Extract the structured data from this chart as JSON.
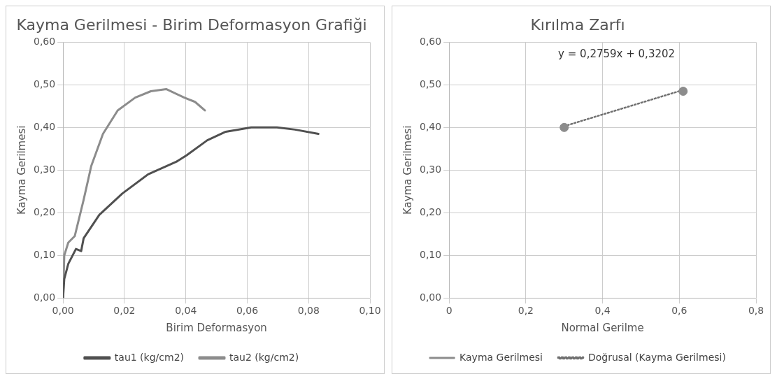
{
  "chart_data": [
    {
      "type": "line",
      "title": "Kayma Gerilmesi - Birim Deformasyon Grafiği",
      "xlabel": "Birim Deformasyon",
      "ylabel": "Kayma Gerilmesi",
      "xlim": [
        0,
        0.1
      ],
      "xticks": [
        {
          "value": 0,
          "label": "0,00"
        },
        {
          "value": 0.02,
          "label": "0,02"
        },
        {
          "value": 0.04,
          "label": "0,04"
        },
        {
          "value": 0.06,
          "label": "0,06"
        },
        {
          "value": 0.08,
          "label": "0,08"
        },
        {
          "value": 0.1,
          "label": "0,10"
        }
      ],
      "ylim": [
        0,
        0.6
      ],
      "yticks": [
        {
          "value": 0,
          "label": "0,00"
        },
        {
          "value": 0.1,
          "label": "0,10"
        },
        {
          "value": 0.2,
          "label": "0,20"
        },
        {
          "value": 0.3,
          "label": "0,30"
        },
        {
          "value": 0.4,
          "label": "0,40"
        },
        {
          "value": 0.5,
          "label": "0,50"
        },
        {
          "value": 0.6,
          "label": "0,60"
        }
      ],
      "grid": true,
      "legend": "bottom",
      "marker": "none",
      "line_style": "solid",
      "series": [
        {
          "name": "tau1 (kg/cm2)",
          "color": "#505050",
          "x": [
            0,
            0.0004,
            0.0017,
            0.0042,
            0.0059,
            0.0067,
            0.0118,
            0.0193,
            0.0277,
            0.037,
            0.0403,
            0.047,
            0.053,
            0.0613,
            0.0697,
            0.0756,
            0.0832
          ],
          "values": [
            0,
            0.045,
            0.08,
            0.115,
            0.11,
            0.14,
            0.195,
            0.245,
            0.29,
            0.32,
            0.335,
            0.37,
            0.39,
            0.4,
            0.4,
            0.395,
            0.385
          ]
        },
        {
          "name": "tau2 (kg/cm2)",
          "color": "#8c8c8c",
          "x": [
            0,
            0.0004,
            0.0017,
            0.0038,
            0.005,
            0.0067,
            0.0092,
            0.013,
            0.0178,
            0.0235,
            0.0286,
            0.0336,
            0.0395,
            0.043,
            0.0462
          ],
          "values": [
            0,
            0.1,
            0.13,
            0.145,
            0.18,
            0.23,
            0.31,
            0.385,
            0.44,
            0.47,
            0.485,
            0.49,
            0.47,
            0.46,
            0.44
          ]
        }
      ]
    },
    {
      "type": "scatter",
      "title": "Kırılma Zarfı",
      "xlabel": "Normal Gerilme",
      "ylabel": "Kayma Gerilmesi",
      "xlim": [
        0,
        0.8
      ],
      "xticks": [
        0,
        {
          "value": 0.2,
          "label": "0,2"
        },
        {
          "value": 0.4,
          "label": "0,4"
        },
        {
          "value": 0.6,
          "label": "0,6"
        },
        {
          "value": 0.8,
          "label": "0,8"
        }
      ],
      "ylim": [
        0,
        0.6
      ],
      "yticks": [
        {
          "value": 0,
          "label": "0,00"
        },
        {
          "value": 0.1,
          "label": "0,10"
        },
        {
          "value": 0.2,
          "label": "0,20"
        },
        {
          "value": 0.3,
          "label": "0,30"
        },
        {
          "value": 0.4,
          "label": "0,40"
        },
        {
          "value": 0.5,
          "label": "0,50"
        },
        {
          "value": 0.6,
          "label": "0,60"
        }
      ],
      "grid": true,
      "legend": "bottom",
      "annotations": [
        "y = 0,2759x + 0,3202"
      ],
      "series": [
        {
          "name": "Kayma Gerilmesi",
          "color": "#8c8c8c",
          "marker": "circle",
          "x": [
            0.3,
            0.61
          ],
          "values": [
            0.4,
            0.485
          ]
        },
        {
          "name": "Doğrusal (Kayma Gerilmesi)",
          "type": "line",
          "marker": "none",
          "line_style": "dotted",
          "color": "#707070",
          "x": [
            0.3,
            0.61
          ],
          "values": [
            0.403,
            0.488
          ]
        }
      ]
    }
  ]
}
